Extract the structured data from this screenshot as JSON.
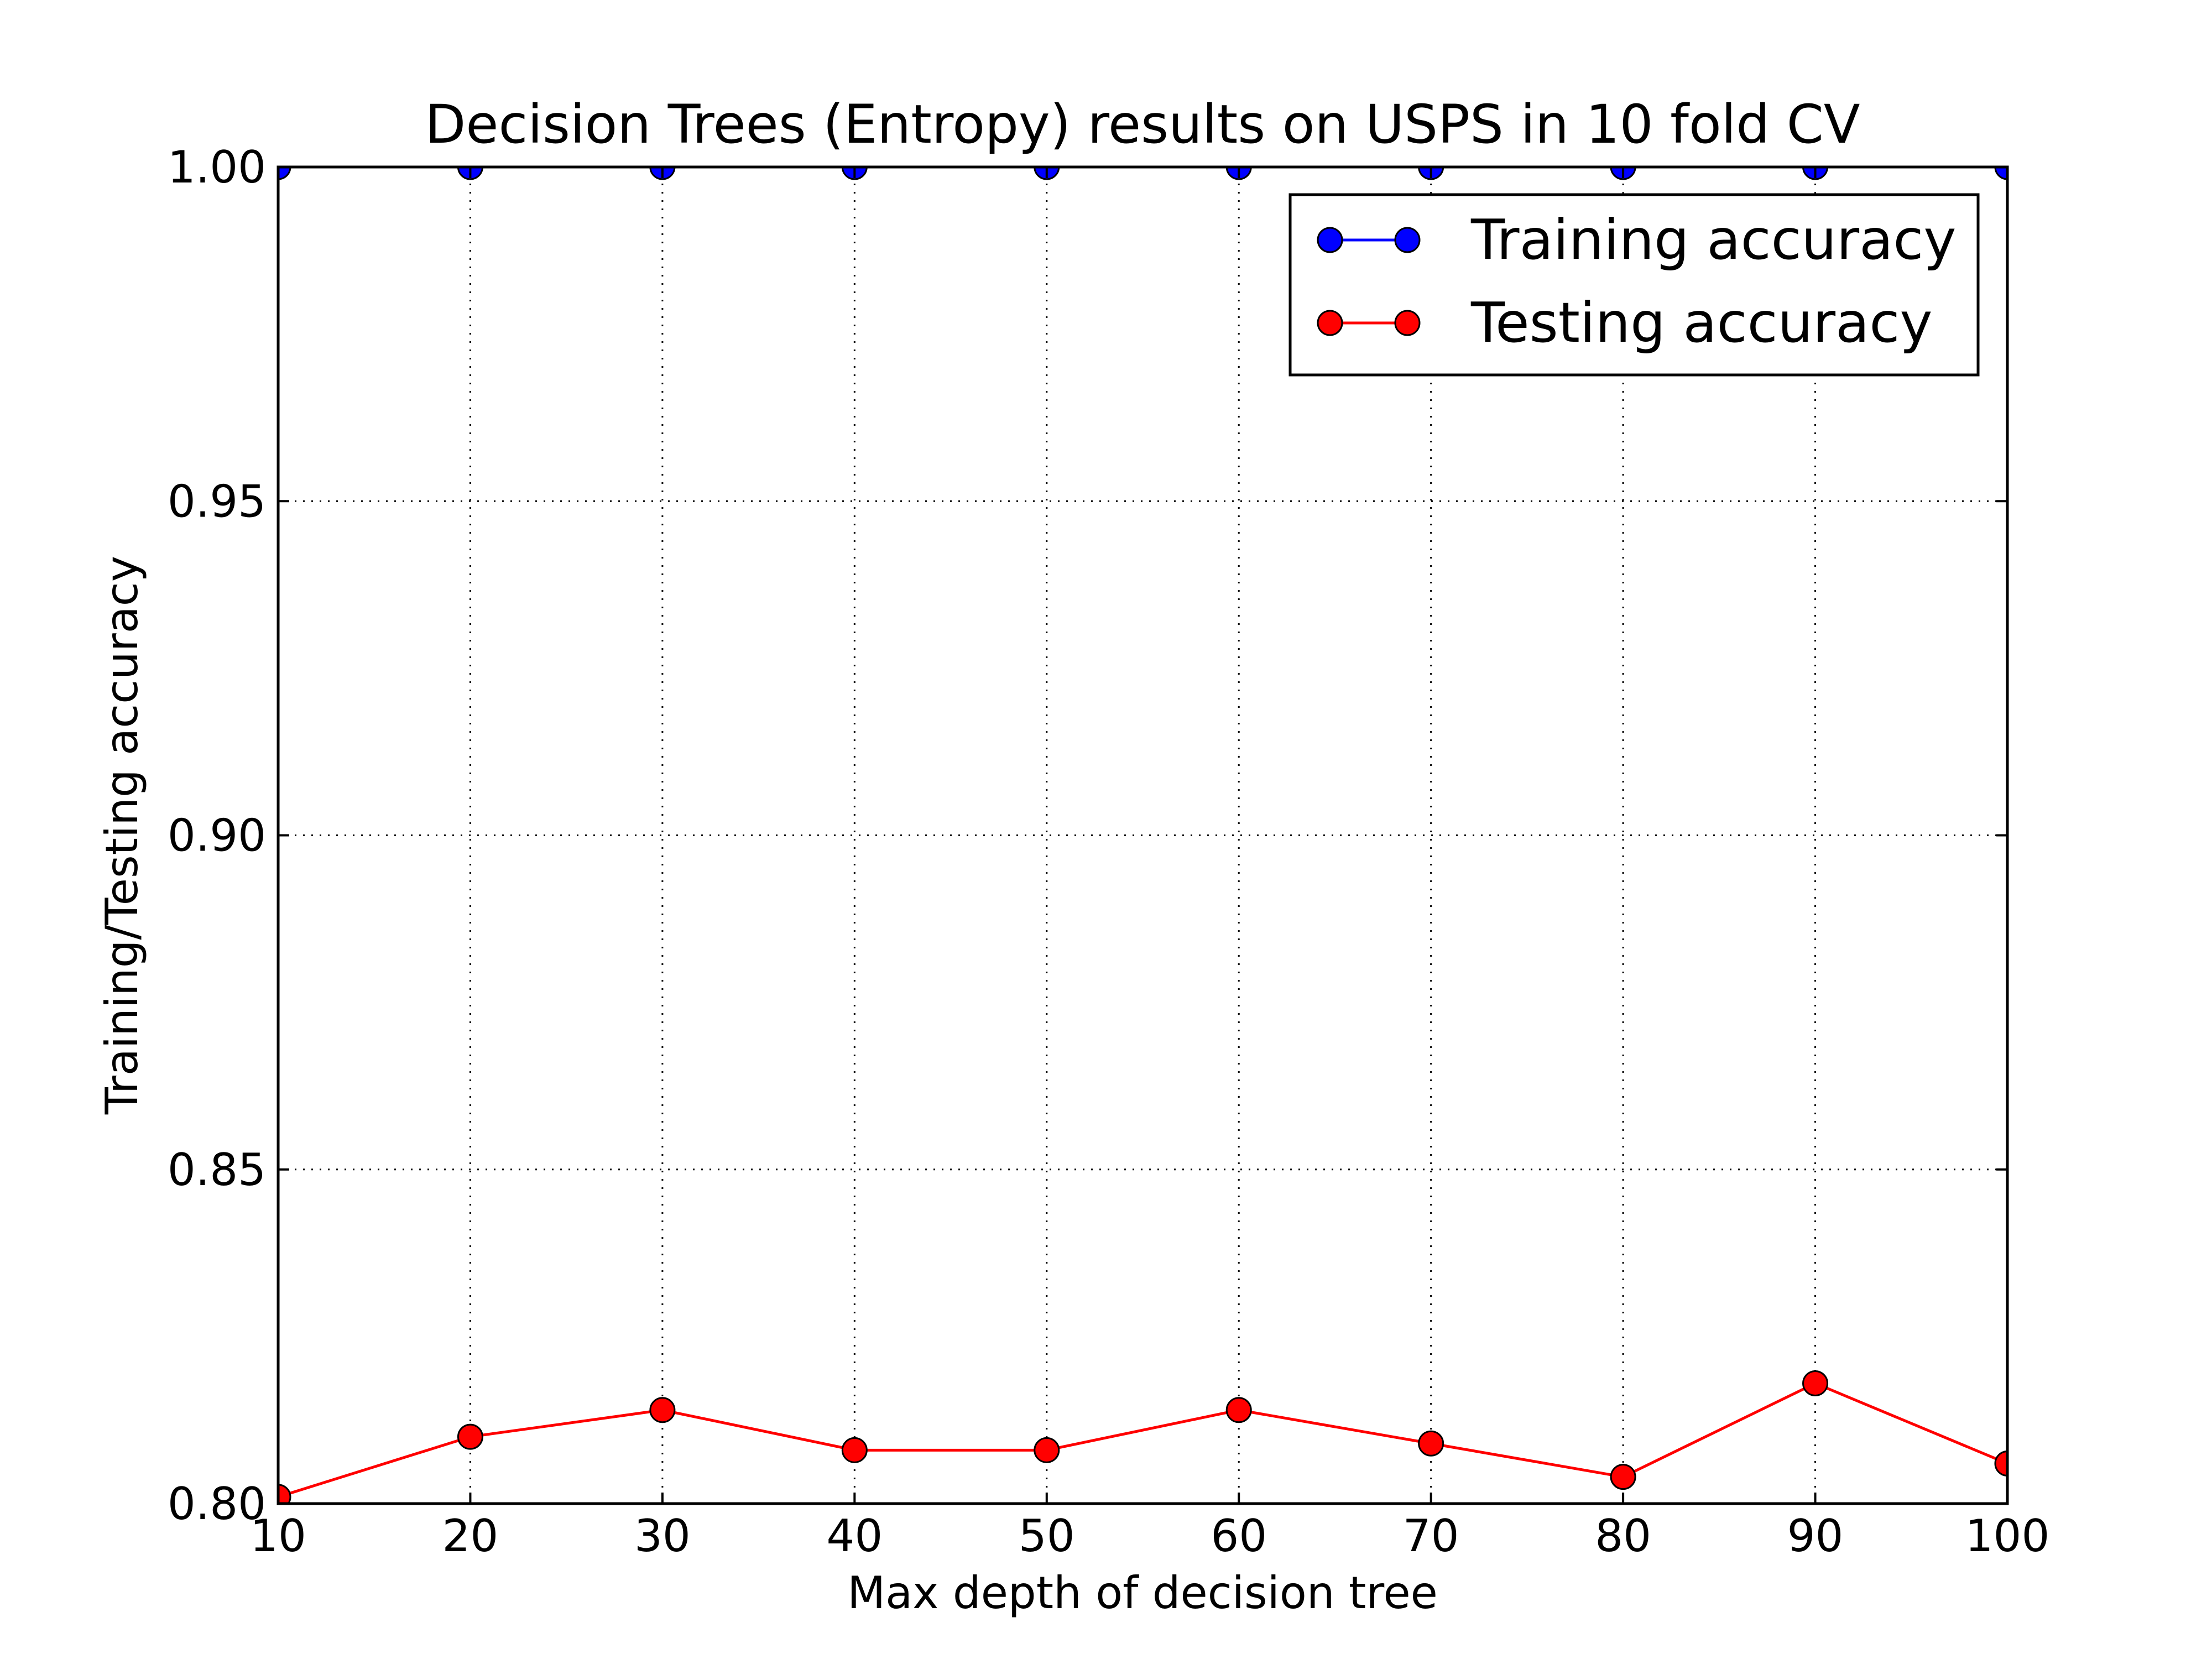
{
  "chart_data": {
    "type": "line",
    "title": "Decision Trees (Entropy) results on USPS in 10 fold CV",
    "xlabel": "Max depth of decision tree",
    "ylabel": "Training/Testing accuracy",
    "xlim": [
      10,
      100
    ],
    "ylim": [
      0.8,
      1.0
    ],
    "xticks": [
      "10",
      "20",
      "30",
      "40",
      "50",
      "60",
      "70",
      "80",
      "90",
      "100"
    ],
    "yticks": [
      "0.80",
      "0.85",
      "0.90",
      "0.95",
      "1.00"
    ],
    "grid": true,
    "legend_position": "top-right",
    "x": [
      10,
      20,
      30,
      40,
      50,
      60,
      70,
      80,
      90,
      100
    ],
    "series": [
      {
        "name": "Training accuracy",
        "color": "#0000ff",
        "values": [
          1.0,
          1.0,
          1.0,
          1.0,
          1.0,
          1.0,
          1.0,
          1.0,
          1.0,
          1.0
        ]
      },
      {
        "name": "Testing accuracy",
        "color": "#ff0000",
        "values": [
          0.801,
          0.81,
          0.814,
          0.808,
          0.808,
          0.814,
          0.809,
          0.804,
          0.818,
          0.806
        ]
      }
    ]
  }
}
